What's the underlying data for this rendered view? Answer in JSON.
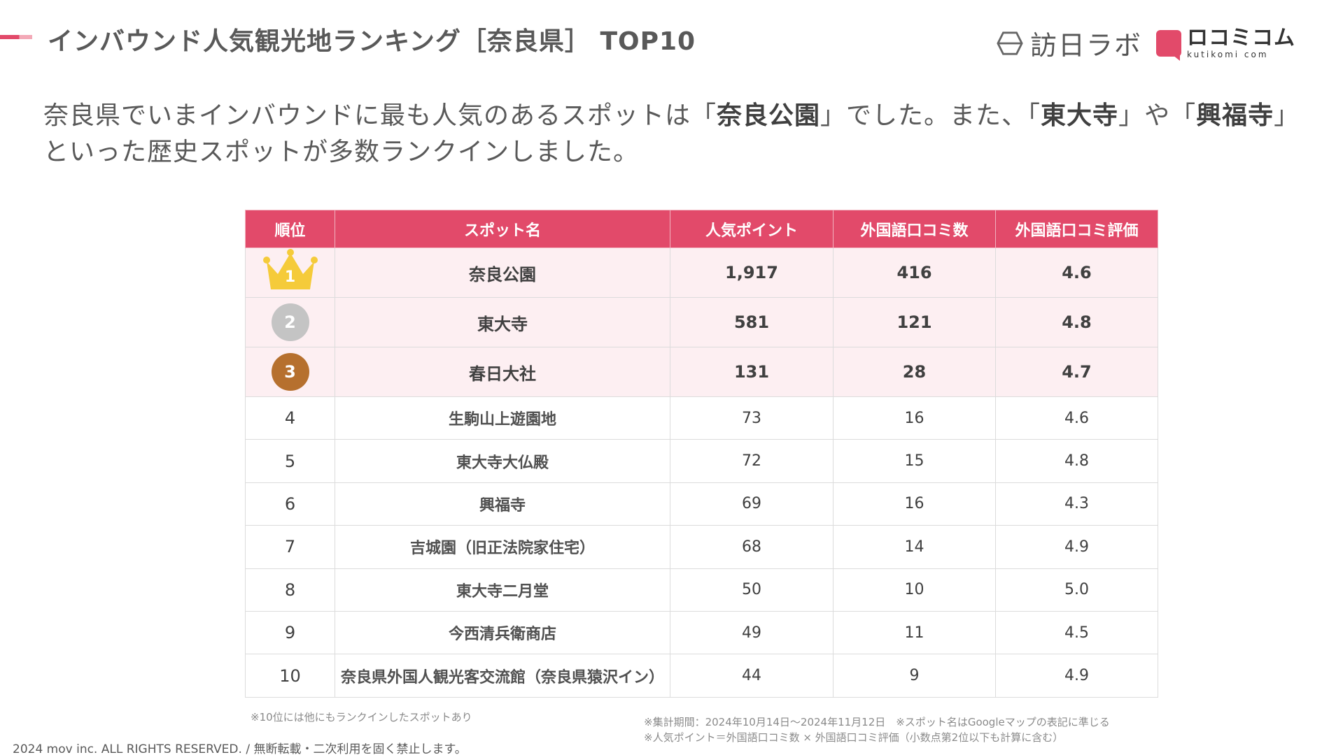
{
  "header": {
    "title": "インバウンド人気観光地ランキング［奈良県］ TOP10",
    "logo_houjin": "訪日ラボ",
    "logo_kuchikomi_jp": "ロコミコム",
    "logo_kuchikomi_en": "kutikomi com"
  },
  "lead": {
    "p1": "奈良県でいまインバウンドに最も人気のあるスポットは「",
    "b1": "奈良公園",
    "p2": "」でした。また、「",
    "b2": "東大寺",
    "p3": "」や「",
    "b3": "興福寺",
    "p4": "」といった歴史スポットが多数ランクインしました。"
  },
  "table": {
    "headers": [
      "順位",
      "スポット名",
      "人気ポイント",
      "外国語口コミ数",
      "外国語口コミ評価"
    ],
    "rows": [
      {
        "rank": "1",
        "spot": "奈良公園",
        "points": "1,917",
        "reviews": "416",
        "rating": "4.6"
      },
      {
        "rank": "2",
        "spot": "東大寺",
        "points": "581",
        "reviews": "121",
        "rating": "4.8"
      },
      {
        "rank": "3",
        "spot": "春日大社",
        "points": "131",
        "reviews": "28",
        "rating": "4.7"
      },
      {
        "rank": "4",
        "spot": "生駒山上遊園地",
        "points": "73",
        "reviews": "16",
        "rating": "4.6"
      },
      {
        "rank": "5",
        "spot": "東大寺大仏殿",
        "points": "72",
        "reviews": "15",
        "rating": "4.8"
      },
      {
        "rank": "6",
        "spot": "興福寺",
        "points": "69",
        "reviews": "16",
        "rating": "4.3"
      },
      {
        "rank": "7",
        "spot": "吉城園（旧正法院家住宅）",
        "points": "68",
        "reviews": "14",
        "rating": "4.9"
      },
      {
        "rank": "8",
        "spot": "東大寺二月堂",
        "points": "50",
        "reviews": "10",
        "rating": "5.0"
      },
      {
        "rank": "9",
        "spot": "今西清兵衛商店",
        "points": "49",
        "reviews": "11",
        "rating": "4.5"
      },
      {
        "rank": "10",
        "spot": "奈良県外国人観光客交流館（奈良県猿沢イン）",
        "points": "44",
        "reviews": "9",
        "rating": "4.9"
      }
    ]
  },
  "notes": {
    "left": "※10位には他にもランクインしたスポットあり",
    "right1": "※集計期間：2024年10月14日〜2024年11月12日　※スポット名はGoogleマップの表記に準じる",
    "right2": "※人気ポイント＝外国語口コミ数 × 外国語口コミ評価（小数点第2位以下も計算に含む）"
  },
  "footer": {
    "copyright": "2024 mov inc. ALL RIGHTS RESERVED. / 無断転載・二次利用を固く禁止します。"
  },
  "colors": {
    "accent": "#e24a6a",
    "highlight_row": "#fdeff2",
    "gold": "#f5cb3a",
    "silver": "#c4c4c4",
    "bronze": "#b6702e"
  },
  "icons": {
    "rank1": "gold-crown-icon",
    "rank2": "silver-medal-icon",
    "rank3": "bronze-medal-icon",
    "brand1": "hexagon-logo-icon",
    "brand2": "speech-bubble-logo-icon"
  }
}
